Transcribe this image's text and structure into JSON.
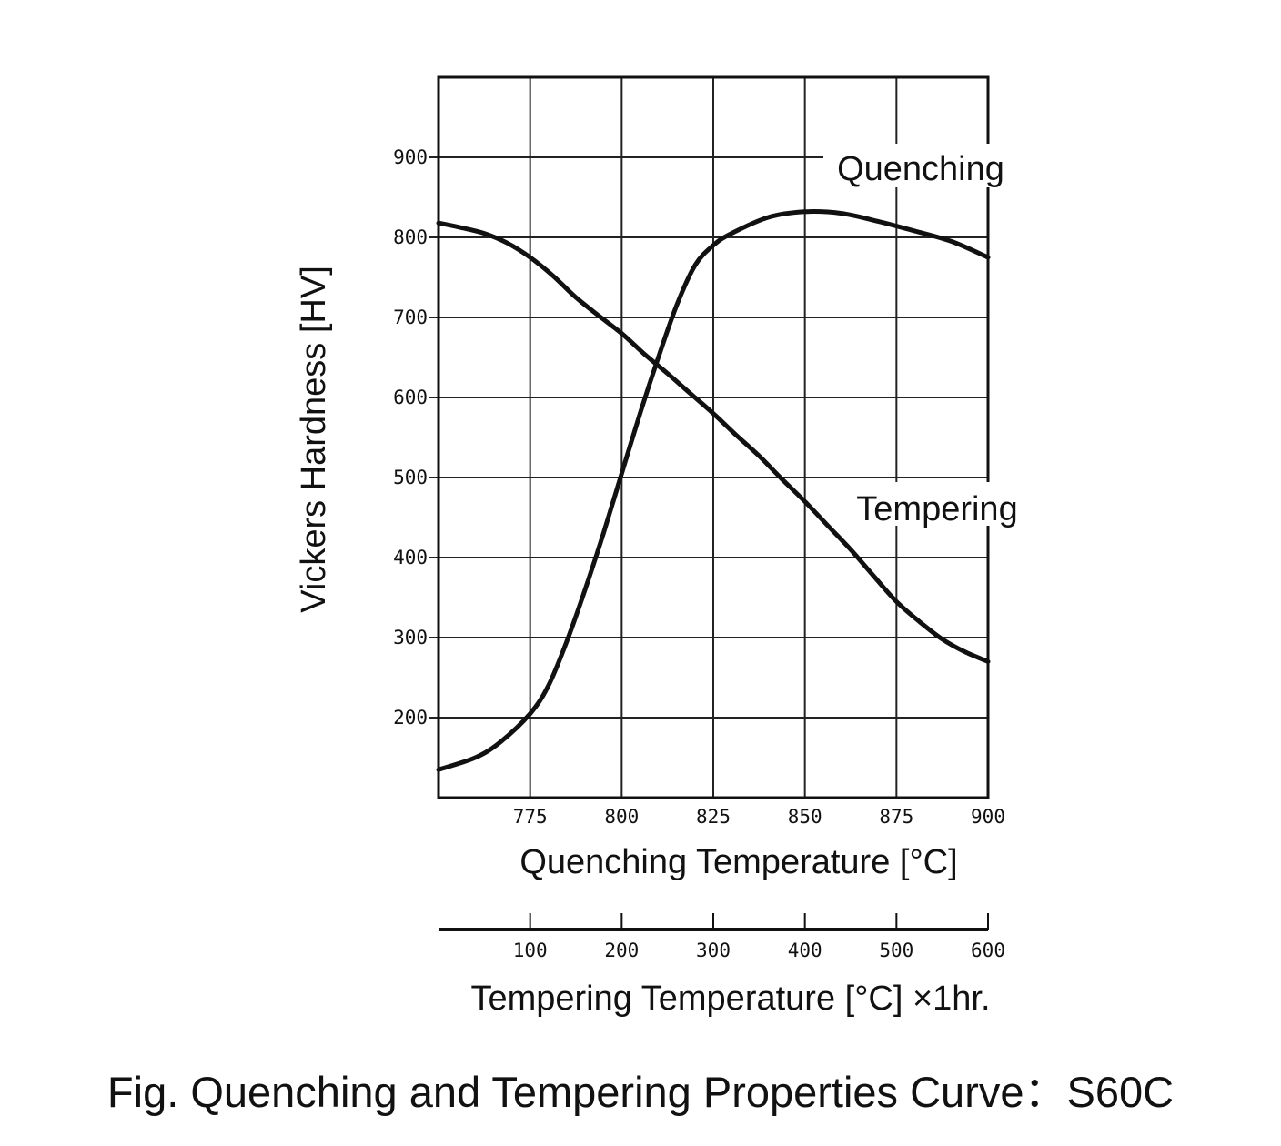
{
  "caption": "Fig. Quenching and Tempering Properties Curve：S60C",
  "chart_data": {
    "type": "line",
    "ylabel": "Vickers Hardness [HV]",
    "xlabel": "Quenching Temperature [°C]",
    "x2label": "Tempering Temperature [°C] ×1hr.",
    "yticks": [
      "200",
      "300",
      "400",
      "500",
      "600",
      "700",
      "800",
      "900"
    ],
    "xticks": [
      "775",
      "800",
      "825",
      "850",
      "875",
      "900"
    ],
    "x2ticks": [
      "100",
      "200",
      "300",
      "400",
      "500",
      "600"
    ],
    "ylim": [
      100,
      1000
    ],
    "xlim": [
      750,
      900
    ],
    "x2lim": [
      0,
      600
    ],
    "grid": true,
    "series": [
      {
        "name": "Quenching",
        "axis": "quenching",
        "x": [
          750,
          760,
          767,
          775,
          780,
          785,
          790,
          795,
          800,
          805,
          810,
          815,
          820,
          825,
          830,
          840,
          850,
          860,
          870,
          880,
          890,
          900
        ],
        "y": [
          135,
          150,
          170,
          205,
          240,
          295,
          360,
          430,
          505,
          580,
          650,
          715,
          765,
          790,
          805,
          825,
          832,
          830,
          820,
          808,
          795,
          775
        ]
      },
      {
        "name": "Tempering",
        "axis": "tempering",
        "x": [
          0,
          25,
          50,
          75,
          100,
          125,
          150,
          175,
          200,
          225,
          250,
          275,
          300,
          325,
          350,
          375,
          400,
          425,
          450,
          475,
          500,
          525,
          550,
          575,
          600
        ],
        "y": [
          818,
          812,
          805,
          793,
          775,
          752,
          725,
          702,
          680,
          654,
          630,
          605,
          580,
          553,
          527,
          498,
          470,
          440,
          410,
          377,
          345,
          320,
          298,
          282,
          270
        ]
      }
    ],
    "line_color": "#111111"
  }
}
